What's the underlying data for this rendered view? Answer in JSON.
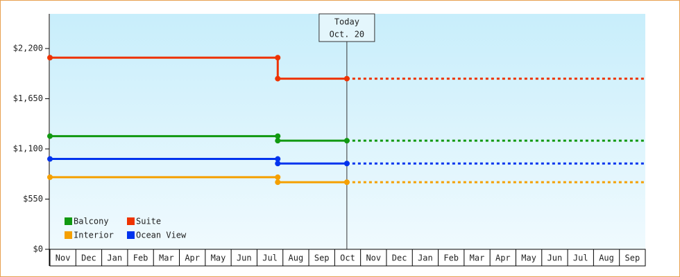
{
  "chart_data": {
    "type": "step-line",
    "categories": [
      "Nov",
      "Dec",
      "Jan",
      "Feb",
      "Mar",
      "Apr",
      "May",
      "Jun",
      "Jul",
      "Aug",
      "Sep",
      "Oct",
      "Nov",
      "Dec",
      "Jan",
      "Feb",
      "Mar",
      "Apr",
      "May",
      "Jun",
      "Jul",
      "Aug",
      "Sep"
    ],
    "x": [
      0,
      8.8,
      8.8,
      11.47,
      23
    ],
    "xlim": [
      0,
      23
    ],
    "ylim": [
      0,
      2580
    ],
    "yticks": [
      {
        "value": 0,
        "label": "$0"
      },
      {
        "value": 550,
        "label": "$550"
      },
      {
        "value": 1100,
        "label": "$1,100"
      },
      {
        "value": 1650,
        "label": "$1,650"
      },
      {
        "value": 2200,
        "label": "$2,200"
      }
    ],
    "today": {
      "title": "Today",
      "date": "Oct. 20",
      "x": 11.47
    },
    "series": [
      {
        "name": "Balcony",
        "color": "#119911",
        "values": [
          1240,
          1240,
          1190,
          1190,
          1190
        ]
      },
      {
        "name": "Suite",
        "color": "#ee3300",
        "values": [
          2100,
          2100,
          1870,
          1870,
          1870
        ]
      },
      {
        "name": "Interior",
        "color": "#f5a000",
        "values": [
          790,
          790,
          735,
          735,
          735
        ]
      },
      {
        "name": "Ocean View",
        "color": "#0033ee",
        "values": [
          990,
          990,
          940,
          940,
          940
        ]
      }
    ]
  }
}
